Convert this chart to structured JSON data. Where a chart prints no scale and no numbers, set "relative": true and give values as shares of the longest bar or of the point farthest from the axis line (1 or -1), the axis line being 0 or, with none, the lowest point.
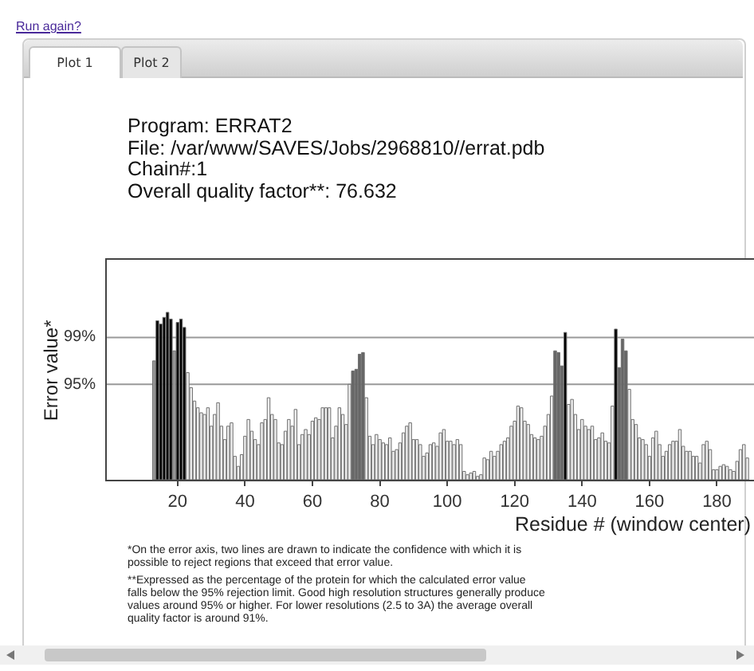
{
  "chart_data": {
    "type": "bar",
    "relative": true,
    "title": "Program: ERRAT2",
    "subtitle": "File: /var/www/SAVES/Jobs/2968810//errat.pdb\nChain#:1\nOverall quality factor**: 76.632",
    "xlabel": "Residue # (window center)",
    "ylabel": "Error value*",
    "annotations": [
      "Run again?",
      "Plot 1",
      "Plot 2",
      "*On the error axis, two lines are drawn to indicate the confidence with which it is possible to reject regions that exceed that error value.",
      "**Expressed as the percentage of the protein for which the calculated error value falls below the 95% rejection limit.  Good high resolution structures generally produce values around 95% or higher.  For lower resolutions (2.5 to 3A) the average overall quality factor is around 91%.",
      "99%",
      "95%"
    ],
    "xlim": [
      -1,
      191
    ],
    "xticks": [
      20,
      40,
      60,
      80,
      100,
      120,
      140,
      160,
      180
    ],
    "x": [
      13,
      14,
      15,
      16,
      17,
      18,
      19,
      20,
      21,
      22,
      23,
      24,
      25,
      26,
      27,
      28,
      29,
      30,
      31,
      32,
      33,
      34,
      35,
      36,
      37,
      38,
      39,
      40,
      41,
      42,
      43,
      44,
      45,
      46,
      47,
      48,
      49,
      50,
      51,
      52,
      53,
      54,
      55,
      56,
      57,
      58,
      59,
      60,
      61,
      62,
      63,
      64,
      65,
      66,
      67,
      68,
      69,
      70,
      71,
      72,
      73,
      74,
      75,
      76,
      77,
      78,
      79,
      80,
      81,
      82,
      83,
      84,
      85,
      86,
      87,
      88,
      89,
      90,
      91,
      92,
      93,
      94,
      95,
      96,
      97,
      98,
      99,
      100,
      101,
      102,
      103,
      104,
      105,
      106,
      107,
      108,
      109,
      110,
      111,
      112,
      113,
      114,
      115,
      116,
      117,
      118,
      119,
      120,
      121,
      122,
      123,
      124,
      125,
      126,
      127,
      128,
      129,
      130,
      131,
      132,
      133,
      134,
      135,
      136,
      137,
      138,
      139,
      140,
      141,
      142,
      143,
      144,
      145,
      146,
      147,
      148,
      149,
      150,
      151,
      152,
      153,
      154,
      155,
      156,
      157,
      158,
      159,
      160,
      161,
      162,
      163,
      164,
      165,
      166,
      167,
      168,
      169,
      170,
      171,
      172,
      173,
      174,
      175,
      176,
      177,
      178,
      179,
      180,
      181,
      182,
      183,
      184,
      185,
      186,
      187,
      188,
      189
    ],
    "values": [
      0.71,
      0.95,
      0.93,
      0.97,
      1.0,
      0.96,
      0.77,
      0.94,
      0.96,
      0.91,
      0.64,
      0.55,
      0.47,
      0.43,
      0.4,
      0.39,
      0.43,
      0.32,
      0.39,
      0.46,
      0.32,
      0.24,
      0.32,
      0.34,
      0.14,
      0.08,
      0.15,
      0.26,
      0.36,
      0.29,
      0.24,
      0.21,
      0.34,
      0.36,
      0.49,
      0.39,
      0.36,
      0.22,
      0.21,
      0.29,
      0.36,
      0.32,
      0.42,
      0.21,
      0.27,
      0.3,
      0.27,
      0.35,
      0.37,
      0.36,
      0.43,
      0.43,
      0.43,
      0.25,
      0.32,
      0.43,
      0.39,
      0.33,
      0.57,
      0.65,
      0.66,
      0.75,
      0.76,
      0.49,
      0.26,
      0.21,
      0.27,
      0.24,
      0.22,
      0.21,
      0.25,
      0.17,
      0.18,
      0.22,
      0.28,
      0.32,
      0.34,
      0.24,
      0.24,
      0.21,
      0.14,
      0.16,
      0.21,
      0.22,
      0.2,
      0.28,
      0.3,
      0.23,
      0.23,
      0.21,
      0.24,
      0.21,
      0.05,
      0.03,
      0.04,
      0.05,
      0.02,
      0.03,
      0.13,
      0.12,
      0.17,
      0.14,
      0.17,
      0.21,
      0.23,
      0.25,
      0.32,
      0.35,
      0.44,
      0.43,
      0.35,
      0.33,
      0.27,
      0.25,
      0.24,
      0.26,
      0.32,
      0.39,
      0.5,
      0.77,
      0.76,
      0.68,
      0.88,
      0.45,
      0.48,
      0.39,
      0.3,
      0.36,
      0.32,
      0.3,
      0.32,
      0.24,
      0.25,
      0.28,
      0.23,
      0.22,
      0.44,
      0.9,
      0.67,
      0.84,
      0.77,
      0.54,
      0.36,
      0.33,
      0.25,
      0.24,
      0.21,
      0.14,
      0.25,
      0.29,
      0.21,
      0.14,
      0.17,
      0.21,
      0.23,
      0.23,
      0.3,
      0.2,
      0.17,
      0.17,
      0.14,
      0.14,
      0.1,
      0.21,
      0.23,
      0.18,
      0.06,
      0.06,
      0.08,
      0.09,
      0.08,
      0.06,
      0.05,
      0.11,
      0.18,
      0.21,
      0.13
    ],
    "colors": [
      "#999999",
      "#000000",
      "#000000",
      "#000000",
      "#000000",
      "#000000",
      "#999999",
      "#000000",
      "#000000",
      "#000000",
      "#eeeeee",
      "#eeeeee",
      "#eeeeee",
      "#eeeeee",
      "#eeeeee",
      "#eeeeee",
      "#eeeeee",
      "#eeeeee",
      "#eeeeee",
      "#eeeeee",
      "#eeeeee",
      "#eeeeee",
      "#eeeeee",
      "#eeeeee",
      "#eeeeee",
      "#eeeeee",
      "#eeeeee",
      "#eeeeee",
      "#eeeeee",
      "#eeeeee",
      "#eeeeee",
      "#eeeeee",
      "#eeeeee",
      "#eeeeee",
      "#eeeeee",
      "#eeeeee",
      "#eeeeee",
      "#eeeeee",
      "#eeeeee",
      "#eeeeee",
      "#eeeeee",
      "#eeeeee",
      "#eeeeee",
      "#eeeeee",
      "#eeeeee",
      "#eeeeee",
      "#eeeeee",
      "#eeeeee",
      "#eeeeee",
      "#eeeeee",
      "#eeeeee",
      "#eeeeee",
      "#eeeeee",
      "#eeeeee",
      "#eeeeee",
      "#eeeeee",
      "#eeeeee",
      "#eeeeee",
      "#eeeeee",
      "#666666",
      "#666666",
      "#666666",
      "#666666",
      "#eeeeee",
      "#eeeeee",
      "#eeeeee",
      "#eeeeee",
      "#eeeeee",
      "#eeeeee",
      "#eeeeee",
      "#eeeeee",
      "#eeeeee",
      "#eeeeee",
      "#eeeeee",
      "#eeeeee",
      "#eeeeee",
      "#eeeeee",
      "#eeeeee",
      "#eeeeee",
      "#eeeeee",
      "#eeeeee",
      "#eeeeee",
      "#eeeeee",
      "#eeeeee",
      "#eeeeee",
      "#eeeeee",
      "#eeeeee",
      "#eeeeee",
      "#eeeeee",
      "#eeeeee",
      "#eeeeee",
      "#eeeeee",
      "#eeeeee",
      "#eeeeee",
      "#eeeeee",
      "#eeeeee",
      "#eeeeee",
      "#eeeeee",
      "#eeeeee",
      "#eeeeee",
      "#eeeeee",
      "#eeeeee",
      "#eeeeee",
      "#eeeeee",
      "#eeeeee",
      "#eeeeee",
      "#eeeeee",
      "#eeeeee",
      "#eeeeee",
      "#eeeeee",
      "#eeeeee",
      "#eeeeee",
      "#eeeeee",
      "#eeeeee",
      "#eeeeee",
      "#eeeeee",
      "#eeeeee",
      "#eeeeee",
      "#eeeeee",
      "#666666",
      "#666666",
      "#666666",
      "#000000",
      "#eeeeee",
      "#eeeeee",
      "#eeeeee",
      "#eeeeee",
      "#eeeeee",
      "#eeeeee",
      "#eeeeee",
      "#eeeeee",
      "#eeeeee",
      "#eeeeee",
      "#eeeeee",
      "#eeeeee",
      "#eeeeee",
      "#eeeeee",
      "#000000",
      "#666666",
      "#666666",
      "#666666",
      "#eeeeee",
      "#eeeeee",
      "#eeeeee",
      "#eeeeee",
      "#eeeeee",
      "#eeeeee",
      "#eeeeee",
      "#eeeeee",
      "#eeeeee",
      "#eeeeee",
      "#eeeeee",
      "#eeeeee",
      "#eeeeee",
      "#eeeeee",
      "#eeeeee",
      "#eeeeee",
      "#eeeeee",
      "#eeeeee",
      "#eeeeee",
      "#eeeeee",
      "#eeeeee",
      "#eeeeee",
      "#eeeeee",
      "#eeeeee",
      "#eeeeee",
      "#eeeeee",
      "#eeeeee",
      "#eeeeee",
      "#eeeeee",
      "#eeeeee",
      "#eeeeee",
      "#eeeeee",
      "#eeeeee",
      "#eeeeee",
      "#eeeeee",
      "#eeeeee"
    ],
    "ref_lines": [
      {
        "axis": "y",
        "value": 0.85,
        "color": "#999999"
      },
      {
        "axis": "y",
        "value": 0.57,
        "color": "#999999"
      }
    ],
    "grid": false,
    "legend": false
  }
}
